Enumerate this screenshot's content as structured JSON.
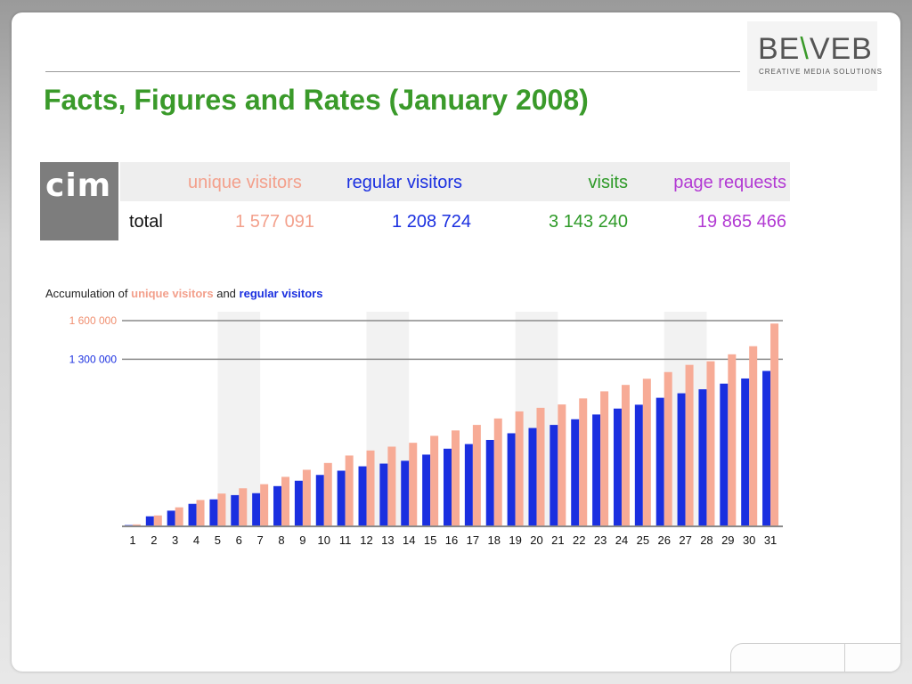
{
  "title": "Facts, Figures and Rates (January 2008)",
  "logo": {
    "word_a": "BE",
    "word_b": "\\",
    "word_c": "VEB",
    "tagline": "CREATIVE MEDIA SOLUTIONS"
  },
  "stats": {
    "badge": "cim",
    "row_label": "total",
    "headers": {
      "unique": "unique visitors",
      "regular": "regular visitors",
      "visits": "visits",
      "pages": "page requests"
    },
    "values": {
      "unique": "1 577 091",
      "regular": "1 208 724",
      "visits": "3 143 240",
      "pages": "19 865 466"
    }
  },
  "chart_caption": {
    "prefix": "Accumulation  of",
    "unique": "unique  visitors",
    "and": "and",
    "regular": "regular  visitors"
  },
  "colors": {
    "unique": "#f7ab96",
    "regular": "#1a2fe0",
    "title": "#3a9a2a",
    "visits": "#2e9a28",
    "pages": "#b23ad3"
  },
  "chart_data": {
    "type": "bar",
    "categories": [
      "1",
      "2",
      "3",
      "4",
      "5",
      "6",
      "7",
      "8",
      "9",
      "10",
      "11",
      "12",
      "13",
      "14",
      "15",
      "16",
      "17",
      "18",
      "19",
      "20",
      "21",
      "22",
      "23",
      "24",
      "25",
      "26",
      "27",
      "28",
      "29",
      "30",
      "31"
    ],
    "series": [
      {
        "name": "regular visitors",
        "values": [
          10000,
          78000,
          122000,
          175000,
          210000,
          243000,
          258000,
          313000,
          355000,
          400000,
          433000,
          467000,
          488000,
          510000,
          558000,
          604000,
          640000,
          672000,
          724000,
          765000,
          789000,
          833000,
          870000,
          916000,
          946000,
          1000000,
          1035000,
          1066000,
          1110000,
          1150000,
          1208724
        ]
      },
      {
        "name": "unique visitors",
        "values": [
          15000,
          85000,
          148000,
          205000,
          255000,
          296000,
          328000,
          385000,
          440000,
          493000,
          551000,
          590000,
          620000,
          650000,
          704000,
          746000,
          789000,
          839000,
          894000,
          922000,
          948000,
          995000,
          1050000,
          1100000,
          1148000,
          1200000,
          1256000,
          1284000,
          1338000,
          1401000,
          1577091
        ]
      }
    ],
    "y_ticks": [
      {
        "value": 1300000,
        "label": "1 300 000"
      },
      {
        "value": 1600000,
        "label": "1 600 000"
      }
    ],
    "ylim": [
      0,
      1600000
    ],
    "weekend_shading": [
      [
        "5",
        "6"
      ],
      [
        "12",
        "13"
      ],
      [
        "19",
        "20"
      ],
      [
        "26",
        "27"
      ]
    ],
    "grid": true
  }
}
